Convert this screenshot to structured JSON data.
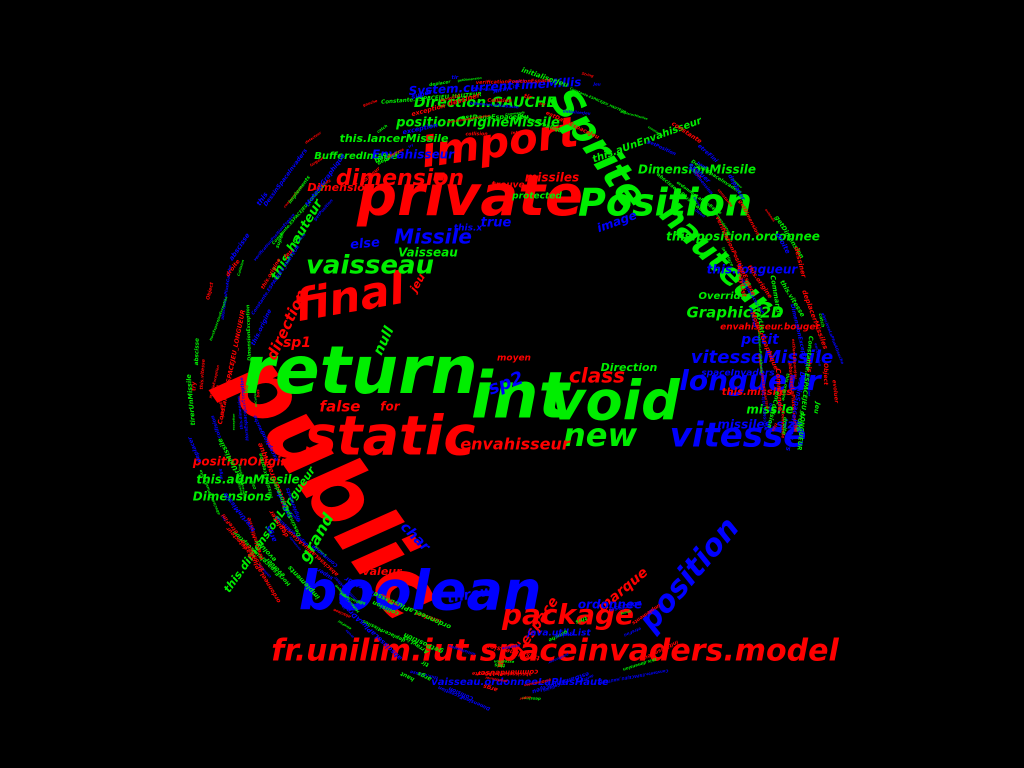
{
  "palette": {
    "red": "#ff0000",
    "green": "#00ee00",
    "blue": "#0000ff",
    "background": "#000000"
  },
  "shape": "letter-e",
  "words": [
    {
      "text": "public",
      "color": "red"
    },
    {
      "text": "return",
      "color": "green"
    },
    {
      "text": "int",
      "color": "green"
    },
    {
      "text": "void",
      "color": "green"
    },
    {
      "text": "private",
      "color": "red"
    },
    {
      "text": "static",
      "color": "red"
    },
    {
      "text": "boolean",
      "color": "blue"
    },
    {
      "text": "import",
      "color": "red"
    },
    {
      "text": "Sprite",
      "color": "green"
    },
    {
      "text": "Position",
      "color": "green"
    },
    {
      "text": "hauteur",
      "color": "green"
    },
    {
      "text": "fr.unilim.iut.spaceinvaders.model",
      "color": "red"
    },
    {
      "text": "final",
      "color": "red"
    },
    {
      "text": "vitesse",
      "color": "blue"
    },
    {
      "text": "longueur",
      "color": "blue"
    },
    {
      "text": "new",
      "color": "green"
    },
    {
      "text": "position",
      "color": "blue"
    },
    {
      "text": "package",
      "color": "red"
    },
    {
      "text": "vaisseau",
      "color": "green"
    },
    {
      "text": "dimension",
      "color": "red"
    },
    {
      "text": "Missile",
      "color": "blue"
    },
    {
      "text": "class",
      "color": "red"
    },
    {
      "text": "sp2",
      "color": "blue"
    },
    {
      "text": "vitesseMissile",
      "color": "blue"
    },
    {
      "text": "envahisseur",
      "color": "red"
    },
    {
      "text": "positionOrigineMissile",
      "color": "green"
    },
    {
      "text": "Direction.GAUCHE",
      "color": "green"
    },
    {
      "text": "System.currentTimeMillis",
      "color": "blue"
    },
    {
      "text": "this.hauteur",
      "color": "green"
    },
    {
      "text": "direction",
      "color": "red"
    },
    {
      "text": "sp1",
      "color": "red"
    },
    {
      "text": "null",
      "color": "green"
    },
    {
      "text": "false",
      "color": "red"
    },
    {
      "text": "for",
      "color": "red"
    },
    {
      "text": "Graphics2D",
      "color": "green"
    },
    {
      "text": "petit",
      "color": "blue"
    },
    {
      "text": "Direction",
      "color": "green"
    },
    {
      "text": "missile",
      "color": "green"
    },
    {
      "text": "missiles.size",
      "color": "blue"
    },
    {
      "text": "this.position.ordonnee",
      "color": "green"
    },
    {
      "text": "this.longueur",
      "color": "blue"
    },
    {
      "text": "throw",
      "color": "blue"
    },
    {
      "text": "marque",
      "color": "red"
    },
    {
      "text": "ordonnee",
      "color": "blue"
    },
    {
      "text": "grand",
      "color": "green"
    },
    {
      "text": "char",
      "color": "blue"
    },
    {
      "text": "valeur",
      "color": "red"
    },
    {
      "text": "l'espace",
      "color": "red"
    },
    {
      "text": "positionOrigine",
      "color": "red"
    },
    {
      "text": "this.aUnMissile",
      "color": "green"
    },
    {
      "text": "Dimensions",
      "color": "green"
    },
    {
      "text": "this.dimensionLongueur",
      "color": "green"
    },
    {
      "text": "vaisseau.ordonneeLaPlusHaute",
      "color": "blue"
    },
    {
      "text": "missiles",
      "color": "red"
    },
    {
      "text": "Vaisseau",
      "color": "green"
    },
    {
      "text": "else",
      "color": "blue"
    },
    {
      "text": "true",
      "color": "blue"
    },
    {
      "text": "image",
      "color": "blue"
    },
    {
      "text": "BufferedImage",
      "color": "green"
    },
    {
      "text": "Envahisseur",
      "color": "blue"
    },
    {
      "text": "DimensionMissile",
      "color": "green"
    },
    {
      "text": "this.aUnEnvahisseur",
      "color": "green"
    },
    {
      "text": "Dimension",
      "color": "red"
    },
    {
      "text": "this.lancerMissile",
      "color": "green"
    },
    {
      "text": "java.util.List",
      "color": "blue"
    },
    {
      "text": "spaceInvaders",
      "color": "blue"
    },
    {
      "text": "trouve",
      "color": "red"
    },
    {
      "text": "protected",
      "color": "green"
    },
    {
      "text": "Override",
      "color": "green"
    },
    {
      "text": "this.missiles",
      "color": "red"
    },
    {
      "text": "envahisseur.bouger",
      "color": "red"
    },
    {
      "text": "moyen",
      "color": "red"
    },
    {
      "text": "jeu",
      "color": "red"
    },
    {
      "text": "this.x",
      "color": "blue"
    }
  ],
  "filler_words": [
    "MissileException",
    "DimensionException",
    "verificationPositionEspace",
    "largeur",
    "deplacer",
    "abscisse",
    "ordonneeLaPlusBasse",
    "abscisseLaPlusADroite",
    "abscisseLaPlusAGauche",
    "estDansEspaceJeu",
    "collision",
    "detecteur",
    "constante",
    "HorsEspaceJeuException",
    "positionner",
    "tirerUnMissile",
    "deplacerMissiles",
    "getPosition",
    "getDimension",
    "initialiserJeu",
    "etreFini",
    "Commande",
    "evoluer",
    "dessiner",
    "MoteurGraphique",
    "DessinSpaceInvaders",
    "Jeu",
    "Constante.ESPACEJEU_LONGUEUR",
    "Constante.ESPACEJEU_HAUTEUR",
    "Collision",
    "gauche",
    "droite",
    "haut",
    "bas",
    "tir",
    "commandeUser",
    "this.vitesse",
    "this.dimension",
    "this.origine",
    "enCollision",
    "exception",
    "args",
    "ArrayList",
    "String",
    "Object",
    "interface",
    "implements",
    "extends",
    "try",
    "catch",
    "super",
    "this"
  ]
}
